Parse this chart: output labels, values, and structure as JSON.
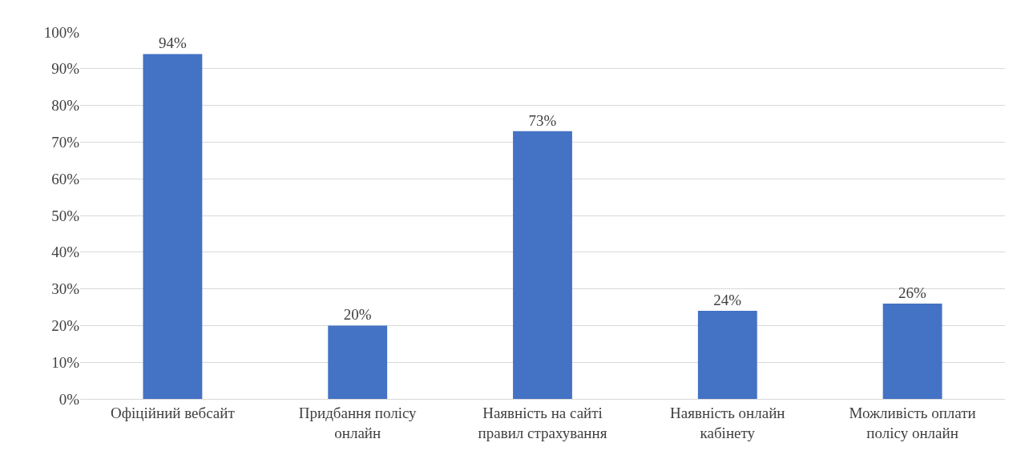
{
  "chart_data": {
    "type": "bar",
    "categories": [
      "Офіційний вебсайт",
      "Придбання полісу онлайн",
      "Наявність на сайті правил страхування",
      "Наявність онлайн кабінету",
      "Можливість оплати полісу онлайн"
    ],
    "values": [
      94,
      20,
      73,
      24,
      26
    ],
    "value_labels": [
      "94%",
      "20%",
      "73%",
      "24%",
      "26%"
    ],
    "color": "#4472c4",
    "ylim": [
      0,
      100
    ],
    "yticks": [
      {
        "value": 0,
        "label": "0%"
      },
      {
        "value": 10,
        "label": "10%"
      },
      {
        "value": 20,
        "label": "20%"
      },
      {
        "value": 30,
        "label": "30%"
      },
      {
        "value": 40,
        "label": "40%"
      },
      {
        "value": 50,
        "label": "50%"
      },
      {
        "value": 60,
        "label": "60%"
      },
      {
        "value": 70,
        "label": "70%"
      },
      {
        "value": 80,
        "label": "80%"
      },
      {
        "value": 90,
        "label": "90%"
      },
      {
        "value": 100,
        "label": "100%"
      }
    ],
    "grid": "y"
  }
}
